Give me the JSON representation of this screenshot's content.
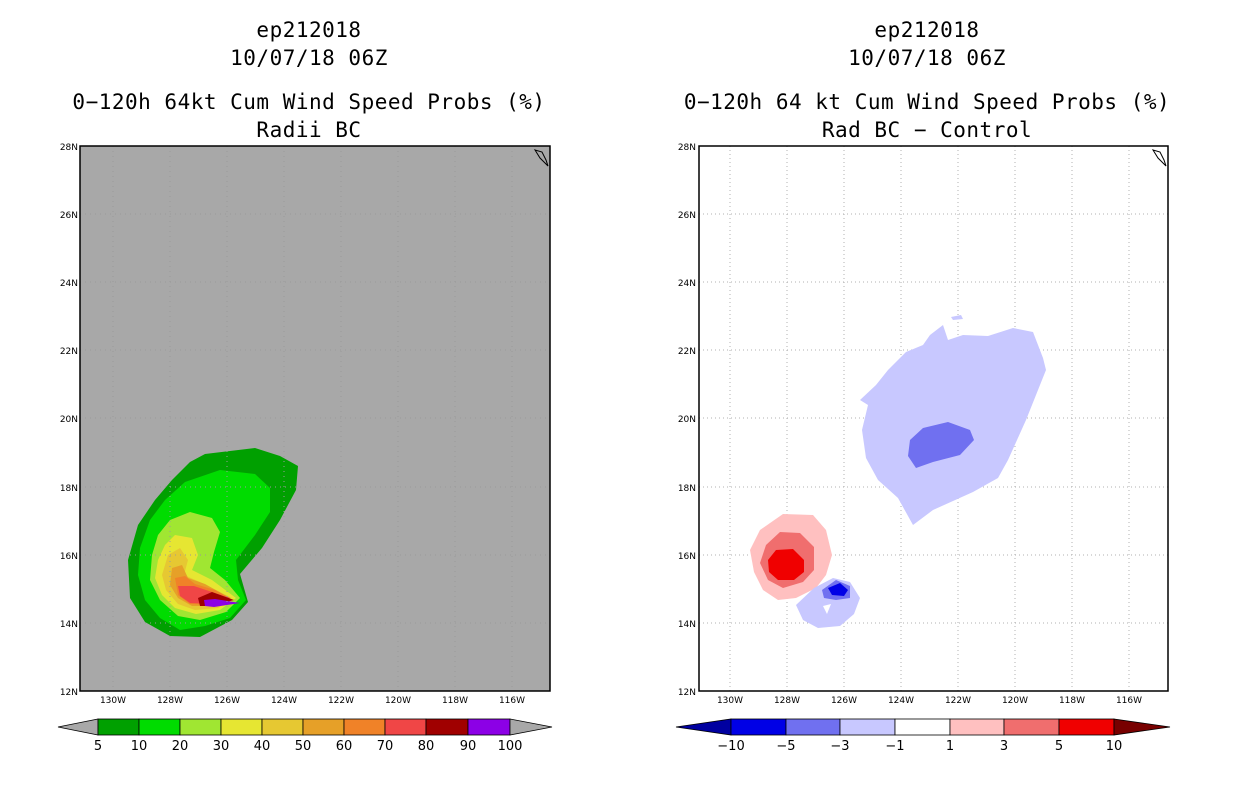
{
  "left_panel": {
    "storm_id": "ep212018",
    "datetime": "10/07/18 06Z",
    "title": "0−120h 64kt Cum Wind Speed Probs (%)",
    "subtitle": "Radii BC",
    "legend": {
      "labels": [
        "5",
        "10",
        "20",
        "30",
        "40",
        "50",
        "60",
        "70",
        "80",
        "90",
        "100"
      ],
      "colors": [
        "#a8a8a8",
        "#00a000",
        "#00dc00",
        "#a0e632",
        "#e6e632",
        "#e6c832",
        "#e6a028",
        "#f08228",
        "#f04646",
        "#a00000",
        "#8c00e6",
        "#a8a8a8"
      ]
    }
  },
  "right_panel": {
    "storm_id": "ep212018",
    "datetime": "10/07/18 06Z",
    "title": "0−120h 64 kt Cum Wind Speed Probs (%)",
    "subtitle": "Rad BC − Control",
    "legend": {
      "labels": [
        "−10",
        "−5",
        "−3",
        "−1",
        "1",
        "3",
        "5",
        "10"
      ],
      "colors": [
        "#0000a0",
        "#0000e6",
        "#7070f0",
        "#c8c8ff",
        "#ffffff",
        "#ffc0c0",
        "#f06e6e",
        "#f00000",
        "#780000"
      ]
    }
  },
  "map": {
    "lat_labels": [
      "28N",
      "26N",
      "24N",
      "22N",
      "20N",
      "18N",
      "16N",
      "14N",
      "12N"
    ],
    "lon_labels": [
      "130W",
      "128W",
      "126W",
      "124W",
      "122W",
      "120W",
      "118W",
      "116W"
    ]
  },
  "colors": {
    "map_background": "#a8a8a8",
    "grid": "#a0a0a0"
  }
}
